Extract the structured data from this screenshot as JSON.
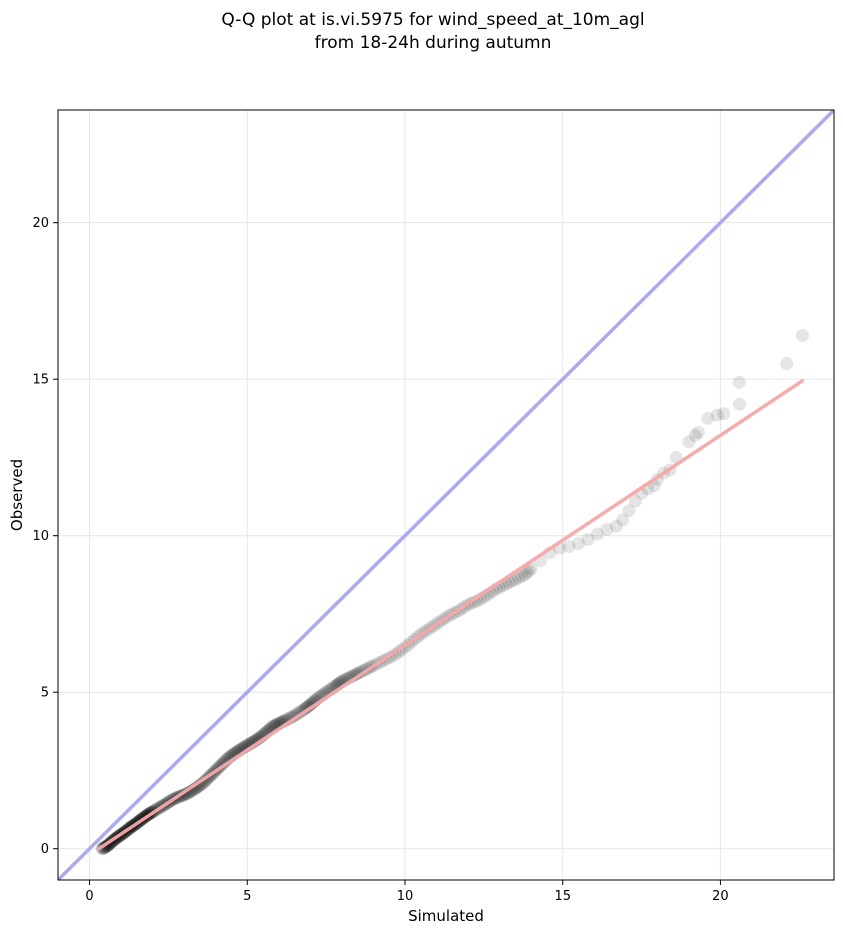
{
  "chart_data": {
    "type": "scatter",
    "title": [
      "Q-Q plot at is.vi.5975 for wind_speed_at_10m_agl",
      "from 18-24h during autumn"
    ],
    "xlabel": "Simulated",
    "ylabel": "Observed",
    "xlim": [
      -1,
      23.6
    ],
    "ylim": [
      -1,
      23.6
    ],
    "xticks": [
      0,
      5,
      10,
      15,
      20
    ],
    "yticks": [
      0,
      5,
      10,
      15,
      20
    ],
    "grid": true,
    "reference_line": {
      "color": "#aaaaf2",
      "from": [
        -1,
        -1
      ],
      "to": [
        23.6,
        23.6
      ]
    },
    "fit_line": {
      "color": "#f5a8a8",
      "from": [
        0.3,
        0.0
      ],
      "to": [
        22.6,
        14.95
      ]
    },
    "points_color": "#000000",
    "points": [
      [
        0.4,
        0.0
      ],
      [
        0.5,
        0.05
      ],
      [
        0.6,
        0.12
      ],
      [
        0.7,
        0.22
      ],
      [
        0.8,
        0.3
      ],
      [
        0.9,
        0.38
      ],
      [
        1.0,
        0.45
      ],
      [
        1.1,
        0.52
      ],
      [
        1.2,
        0.6
      ],
      [
        1.3,
        0.68
      ],
      [
        1.4,
        0.75
      ],
      [
        1.5,
        0.82
      ],
      [
        1.6,
        0.9
      ],
      [
        1.7,
        0.98
      ],
      [
        1.8,
        1.05
      ],
      [
        1.9,
        1.12
      ],
      [
        2.0,
        1.18
      ],
      [
        2.2,
        1.3
      ],
      [
        2.4,
        1.42
      ],
      [
        2.6,
        1.55
      ],
      [
        2.8,
        1.65
      ],
      [
        3.0,
        1.72
      ],
      [
        3.2,
        1.82
      ],
      [
        3.4,
        1.95
      ],
      [
        3.6,
        2.1
      ],
      [
        3.8,
        2.3
      ],
      [
        4.0,
        2.5
      ],
      [
        4.2,
        2.7
      ],
      [
        4.4,
        2.9
      ],
      [
        4.6,
        3.05
      ],
      [
        4.8,
        3.18
      ],
      [
        5.0,
        3.3
      ],
      [
        5.2,
        3.42
      ],
      [
        5.4,
        3.55
      ],
      [
        5.6,
        3.72
      ],
      [
        5.8,
        3.9
      ],
      [
        6.0,
        4.0
      ],
      [
        6.2,
        4.1
      ],
      [
        6.5,
        4.25
      ],
      [
        6.8,
        4.45
      ],
      [
        7.0,
        4.6
      ],
      [
        7.2,
        4.78
      ],
      [
        7.5,
        5.0
      ],
      [
        7.8,
        5.2
      ],
      [
        8.0,
        5.35
      ],
      [
        8.3,
        5.5
      ],
      [
        8.6,
        5.65
      ],
      [
        9.0,
        5.85
      ],
      [
        9.3,
        6.0
      ],
      [
        9.6,
        6.15
      ],
      [
        9.9,
        6.35
      ],
      [
        10.2,
        6.6
      ],
      [
        10.5,
        6.85
      ],
      [
        10.8,
        7.05
      ],
      [
        11.1,
        7.25
      ],
      [
        11.4,
        7.45
      ],
      [
        11.7,
        7.6
      ],
      [
        12.0,
        7.8
      ],
      [
        12.3,
        7.92
      ],
      [
        12.6,
        8.1
      ],
      [
        12.9,
        8.3
      ],
      [
        13.2,
        8.45
      ],
      [
        13.5,
        8.6
      ],
      [
        13.8,
        8.75
      ],
      [
        14.0,
        8.95
      ],
      [
        14.3,
        9.2
      ],
      [
        14.6,
        9.45
      ],
      [
        14.9,
        9.6
      ],
      [
        15.2,
        9.65
      ],
      [
        15.5,
        9.75
      ],
      [
        15.8,
        9.88
      ],
      [
        16.1,
        10.05
      ],
      [
        16.4,
        10.2
      ],
      [
        16.7,
        10.3
      ],
      [
        16.9,
        10.5
      ],
      [
        17.1,
        10.8
      ],
      [
        17.3,
        11.1
      ],
      [
        17.5,
        11.35
      ],
      [
        17.7,
        11.5
      ],
      [
        17.9,
        11.6
      ],
      [
        18.0,
        11.8
      ],
      [
        18.2,
        12.0
      ],
      [
        18.4,
        12.1
      ],
      [
        18.6,
        12.5
      ],
      [
        19.0,
        13.0
      ],
      [
        19.2,
        13.2
      ],
      [
        19.3,
        13.3
      ],
      [
        19.6,
        13.75
      ],
      [
        19.9,
        13.85
      ],
      [
        20.1,
        13.9
      ],
      [
        20.6,
        14.2
      ],
      [
        20.6,
        14.9
      ],
      [
        22.1,
        15.5
      ],
      [
        22.6,
        16.4
      ]
    ]
  }
}
